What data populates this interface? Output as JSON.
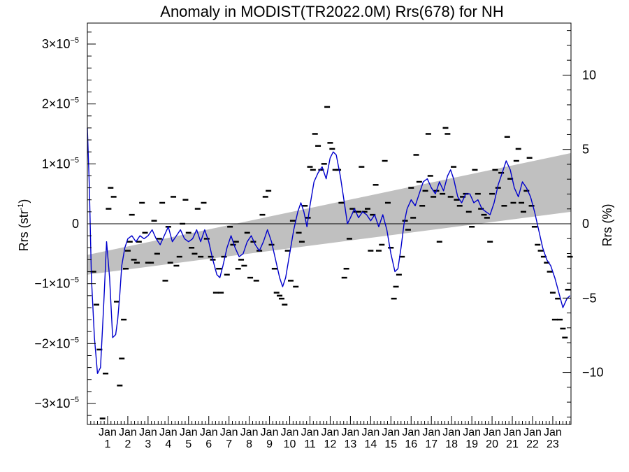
{
  "chart_data": {
    "type": "line",
    "title": "Anomaly in MODIST(TR2022.0M) Rrs(678) for NH",
    "ylabel": "Rrs (str",
    "ylabel_sup": "-1",
    "ylabel_close": ")",
    "y2label": "Rrs (%)",
    "ylim": [
      -3.35e-05,
      3.35e-05
    ],
    "y2lim": [
      -13.5,
      13.5
    ],
    "xlim": [
      0,
      23.9
    ],
    "grid": false,
    "left_ticks": [
      {
        "value": 3e-05,
        "mant": "3",
        "times": "×10",
        "exp": "−5"
      },
      {
        "value": 2e-05,
        "mant": "2",
        "times": "×10",
        "exp": "−5"
      },
      {
        "value": 1e-05,
        "mant": "1",
        "times": "×10",
        "exp": "−5"
      },
      {
        "value": 0,
        "mant": "0",
        "times": "",
        "exp": ""
      },
      {
        "value": -1e-05,
        "mant": "−1",
        "times": "×10",
        "exp": "−5"
      },
      {
        "value": -2e-05,
        "mant": "−2",
        "times": "×10",
        "exp": "−5"
      },
      {
        "value": -3e-05,
        "mant": "−3",
        "times": "×10",
        "exp": "−5"
      }
    ],
    "right_ticks": [
      {
        "value": 10,
        "label": "10"
      },
      {
        "value": 5,
        "label": "5"
      },
      {
        "value": 0,
        "label": "0"
      },
      {
        "value": -5,
        "label": "−5"
      },
      {
        "value": -10,
        "label": "−10"
      }
    ],
    "x_tick_labels": [
      {
        "month": "Jan",
        "year": "1"
      },
      {
        "month": "Jan",
        "year": "2"
      },
      {
        "month": "Jan",
        "year": "3"
      },
      {
        "month": "Jan",
        "year": "4"
      },
      {
        "month": "Jan",
        "year": "5"
      },
      {
        "month": "Jan",
        "year": "6"
      },
      {
        "month": "Jan",
        "year": "7"
      },
      {
        "month": "Jan",
        "year": "8"
      },
      {
        "month": "Jan",
        "year": "9"
      },
      {
        "month": "Jan",
        "year": "10"
      },
      {
        "month": "Jan",
        "year": "11"
      },
      {
        "month": "Jan",
        "year": "12"
      },
      {
        "month": "Jan",
        "year": "13"
      },
      {
        "month": "Jan",
        "year": "14"
      },
      {
        "month": "Jan",
        "year": "15"
      },
      {
        "month": "Jan",
        "year": "16"
      },
      {
        "month": "Jan",
        "year": "17"
      },
      {
        "month": "Jan",
        "year": "18"
      },
      {
        "month": "Jan",
        "year": "19"
      },
      {
        "month": "Jan",
        "year": "20"
      },
      {
        "month": "Jan",
        "year": "21"
      },
      {
        "month": "Jan",
        "year": "22"
      },
      {
        "month": "Jan",
        "year": "23"
      }
    ],
    "band": {
      "lower_start": -8.5e-06,
      "lower_end": 2e-06,
      "upper_start": -5.2e-06,
      "upper_end": 1.18e-05,
      "color": "#c0c0c0"
    },
    "smoothed_line": {
      "color": "#0000cc",
      "points": [
        [
          0.0,
          1.6e-05
        ],
        [
          0.1,
          6e-06
        ],
        [
          0.2,
          -9e-06
        ],
        [
          0.35,
          -1.9e-05
        ],
        [
          0.5,
          -2.5e-05
        ],
        [
          0.65,
          -2.4e-05
        ],
        [
          0.8,
          -1.4e-05
        ],
        [
          0.95,
          -3e-06
        ],
        [
          1.1,
          -9e-06
        ],
        [
          1.25,
          -1.9e-05
        ],
        [
          1.4,
          -1.85e-05
        ],
        [
          1.5,
          -1.6e-05
        ],
        [
          1.6,
          -1.2e-05
        ],
        [
          1.7,
          -7e-06
        ],
        [
          1.85,
          -4e-06
        ],
        [
          2.0,
          -2.5e-06
        ],
        [
          2.2,
          -2e-06
        ],
        [
          2.4,
          -3e-06
        ],
        [
          2.6,
          -2e-06
        ],
        [
          2.8,
          -2.5e-06
        ],
        [
          3.0,
          -2e-06
        ],
        [
          3.2,
          -1e-06
        ],
        [
          3.4,
          -2.5e-06
        ],
        [
          3.6,
          -3.5e-06
        ],
        [
          3.8,
          -2e-06
        ],
        [
          4.0,
          -5e-07
        ],
        [
          4.2,
          -3e-06
        ],
        [
          4.4,
          -2e-06
        ],
        [
          4.6,
          -1e-06
        ],
        [
          4.8,
          -2.5e-06
        ],
        [
          5.0,
          -3e-06
        ],
        [
          5.2,
          -2.5e-06
        ],
        [
          5.4,
          -1e-06
        ],
        [
          5.6,
          -3e-06
        ],
        [
          5.8,
          -1e-06
        ],
        [
          6.0,
          -3e-06
        ],
        [
          6.2,
          -6e-06
        ],
        [
          6.4,
          -8.5e-06
        ],
        [
          6.55,
          -9e-06
        ],
        [
          6.7,
          -7e-06
        ],
        [
          6.9,
          -4e-06
        ],
        [
          7.1,
          -2e-06
        ],
        [
          7.3,
          -4e-06
        ],
        [
          7.5,
          -5.5e-06
        ],
        [
          7.7,
          -5e-06
        ],
        [
          7.9,
          -3e-06
        ],
        [
          8.1,
          -2e-06
        ],
        [
          8.3,
          -3.5e-06
        ],
        [
          8.5,
          -4.5e-06
        ],
        [
          8.7,
          -3e-06
        ],
        [
          8.9,
          -1e-06
        ],
        [
          9.1,
          -3e-06
        ],
        [
          9.3,
          -6e-06
        ],
        [
          9.5,
          -9e-06
        ],
        [
          9.65,
          -1.05e-05
        ],
        [
          9.8,
          -9e-06
        ],
        [
          10.0,
          -5e-06
        ],
        [
          10.2,
          -1e-06
        ],
        [
          10.4,
          2e-06
        ],
        [
          10.55,
          3.5e-06
        ],
        [
          10.7,
          2e-06
        ],
        [
          10.85,
          -5e-07
        ],
        [
          11.0,
          3e-06
        ],
        [
          11.2,
          7e-06
        ],
        [
          11.4,
          8.5e-06
        ],
        [
          11.6,
          9.5e-06
        ],
        [
          11.8,
          7.5e-06
        ],
        [
          12.0,
          1.1e-05
        ],
        [
          12.15,
          1.2e-05
        ],
        [
          12.3,
          1.15e-05
        ],
        [
          12.5,
          8e-06
        ],
        [
          12.7,
          3.5e-06
        ],
        [
          12.85,
          0.0
        ],
        [
          13.0,
          1e-06
        ],
        [
          13.2,
          2.5e-06
        ],
        [
          13.4,
          1e-06
        ],
        [
          13.6,
          2e-06
        ],
        [
          13.8,
          1.5e-06
        ],
        [
          14.0,
          5e-07
        ],
        [
          14.2,
          1.5e-06
        ],
        [
          14.4,
          -5e-07
        ],
        [
          14.6,
          1.5e-06
        ],
        [
          14.8,
          -1e-06
        ],
        [
          15.0,
          -5e-06
        ],
        [
          15.2,
          -8e-06
        ],
        [
          15.35,
          -7.5e-06
        ],
        [
          15.5,
          -4e-06
        ],
        [
          15.65,
          0.0
        ],
        [
          15.8,
          2.5e-06
        ],
        [
          16.0,
          4e-06
        ],
        [
          16.2,
          3e-06
        ],
        [
          16.4,
          5e-06
        ],
        [
          16.6,
          7e-06
        ],
        [
          16.8,
          7.5e-06
        ],
        [
          17.0,
          6e-06
        ],
        [
          17.2,
          5e-06
        ],
        [
          17.4,
          7e-06
        ],
        [
          17.6,
          5.5e-06
        ],
        [
          17.8,
          8e-06
        ],
        [
          17.95,
          9e-06
        ],
        [
          18.1,
          7.5e-06
        ],
        [
          18.3,
          4.5e-06
        ],
        [
          18.5,
          3.5e-06
        ],
        [
          18.7,
          5e-06
        ],
        [
          18.9,
          5e-06
        ],
        [
          19.1,
          3.5e-06
        ],
        [
          19.3,
          4e-06
        ],
        [
          19.5,
          2.5e-06
        ],
        [
          19.7,
          2e-06
        ],
        [
          19.9,
          1.5e-06
        ],
        [
          20.1,
          3.5e-06
        ],
        [
          20.3,
          6.5e-06
        ],
        [
          20.5,
          8.5e-06
        ],
        [
          20.7,
          1.05e-05
        ],
        [
          20.9,
          9e-06
        ],
        [
          21.1,
          6e-06
        ],
        [
          21.3,
          4.5e-06
        ],
        [
          21.5,
          7e-06
        ],
        [
          21.7,
          6e-06
        ],
        [
          21.9,
          4.5e-06
        ],
        [
          22.1,
          2e-06
        ],
        [
          22.3,
          -1e-06
        ],
        [
          22.5,
          -4e-06
        ],
        [
          22.7,
          -6e-06
        ],
        [
          22.9,
          -7e-06
        ],
        [
          23.1,
          -9e-06
        ],
        [
          23.3,
          -1.15e-05
        ],
        [
          23.5,
          -1.4e-05
        ],
        [
          23.7,
          -1.25e-05
        ],
        [
          23.85,
          -1.2e-05
        ]
      ]
    },
    "monthly_points": [
      [
        0.3,
        -8e-06
      ],
      [
        0.45,
        -1.35e-05
      ],
      [
        0.6,
        -2.1e-05
      ],
      [
        0.75,
        -3.25e-05
      ],
      [
        0.9,
        -2.5e-05
      ],
      [
        1.05,
        2.5e-06
      ],
      [
        1.15,
        6e-06
      ],
      [
        1.3,
        4.5e-06
      ],
      [
        1.45,
        -1.3e-05
      ],
      [
        1.6,
        -2.7e-05
      ],
      [
        1.7,
        -2.25e-05
      ],
      [
        1.8,
        -1.6e-05
      ],
      [
        1.9,
        -7.5e-06
      ],
      [
        2.0,
        -4.5e-06
      ],
      [
        2.1,
        -3e-06
      ],
      [
        2.2,
        1.5e-06
      ],
      [
        2.3,
        -6e-06
      ],
      [
        2.45,
        -6.5e-06
      ],
      [
        2.55,
        -3e-06
      ],
      [
        2.7,
        3.5e-06
      ],
      [
        2.85,
        -1.5e-06
      ],
      [
        3.0,
        -6.5e-06
      ],
      [
        3.15,
        -6.5e-06
      ],
      [
        3.3,
        5e-07
      ],
      [
        3.45,
        -5e-06
      ],
      [
        3.55,
        -2.5e-06
      ],
      [
        3.7,
        3.5e-06
      ],
      [
        3.85,
        -9.5e-06
      ],
      [
        4.0,
        -5e-07
      ],
      [
        4.1,
        -6.5e-06
      ],
      [
        4.25,
        4.5e-06
      ],
      [
        4.4,
        -7e-06
      ],
      [
        4.55,
        -5.5e-06
      ],
      [
        4.7,
        0.0
      ],
      [
        4.85,
        4e-06
      ],
      [
        5.0,
        -1.5e-06
      ],
      [
        5.15,
        -4e-06
      ],
      [
        5.3,
        -5e-06
      ],
      [
        5.45,
        2.5e-06
      ],
      [
        5.6,
        -5.5e-06
      ],
      [
        5.75,
        3.5e-06
      ],
      [
        5.9,
        -2.5e-06
      ],
      [
        6.1,
        -5.5e-06
      ],
      [
        6.2,
        -6e-06
      ],
      [
        6.35,
        -1.15e-05
      ],
      [
        6.5,
        -7.5e-06
      ],
      [
        6.6,
        -1.15e-05
      ],
      [
        6.75,
        -5.5e-06
      ],
      [
        6.9,
        -8.5e-06
      ],
      [
        7.05,
        -5e-07
      ],
      [
        7.2,
        -3.5e-06
      ],
      [
        7.35,
        -3e-06
      ],
      [
        7.45,
        -7.5e-06
      ],
      [
        7.6,
        -6e-06
      ],
      [
        7.75,
        -7e-06
      ],
      [
        7.9,
        -1.5e-06
      ],
      [
        8.05,
        -9e-06
      ],
      [
        8.2,
        -3e-06
      ],
      [
        8.35,
        -9.5e-06
      ],
      [
        8.5,
        -4.5e-06
      ],
      [
        8.65,
        1.5e-06
      ],
      [
        8.8,
        4.5e-06
      ],
      [
        8.95,
        5.5e-06
      ],
      [
        9.1,
        -3.5e-06
      ],
      [
        9.25,
        -7.5e-06
      ],
      [
        9.35,
        -1.15e-05
      ],
      [
        9.5,
        -1.2e-05
      ],
      [
        9.6,
        -1.25e-05
      ],
      [
        9.75,
        -1.35e-05
      ],
      [
        9.9,
        -4.5e-06
      ],
      [
        10.05,
        -9.5e-06
      ],
      [
        10.15,
        5e-07
      ],
      [
        10.3,
        -1.05e-05
      ],
      [
        10.45,
        -1.5e-06
      ],
      [
        10.6,
        -3e-06
      ],
      [
        10.75,
        3e-06
      ],
      [
        10.9,
        1e-06
      ],
      [
        11.0,
        9.5e-06
      ],
      [
        11.15,
        9e-06
      ],
      [
        11.25,
        1.5e-05
      ],
      [
        11.4,
        1.3e-05
      ],
      [
        11.55,
        9e-06
      ],
      [
        11.7,
        1e-05
      ],
      [
        11.85,
        1.95e-05
      ],
      [
        12.0,
        1.35e-05
      ],
      [
        12.1,
        1.25e-05
      ],
      [
        12.25,
        9e-06
      ],
      [
        12.4,
        9e-06
      ],
      [
        12.55,
        3.5e-06
      ],
      [
        12.7,
        -9e-06
      ],
      [
        12.8,
        -7.5e-06
      ],
      [
        12.95,
        -2.5e-06
      ],
      [
        13.1,
        2.5e-06
      ],
      [
        13.25,
        2e-06
      ],
      [
        13.4,
        2e-06
      ],
      [
        13.55,
        9.5e-06
      ],
      [
        13.7,
        2e-06
      ],
      [
        13.85,
        2.5e-06
      ],
      [
        14.0,
        -4.5e-06
      ],
      [
        14.1,
        1.5e-06
      ],
      [
        14.25,
        6.5e-06
      ],
      [
        14.4,
        -4.5e-06
      ],
      [
        14.55,
        -3.5e-06
      ],
      [
        14.7,
        1.05e-05
      ],
      [
        14.85,
        3.5e-06
      ],
      [
        15.0,
        -4e-06
      ],
      [
        15.15,
        -1.25e-05
      ],
      [
        15.25,
        -1.05e-05
      ],
      [
        15.4,
        -8.5e-06
      ],
      [
        15.55,
        -5.5e-06
      ],
      [
        15.7,
        5e-07
      ],
      [
        15.85,
        -1e-06
      ],
      [
        16.0,
        6e-06
      ],
      [
        16.1,
        1e-06
      ],
      [
        16.25,
        1.15e-05
      ],
      [
        16.4,
        7e-06
      ],
      [
        16.55,
        3e-06
      ],
      [
        16.7,
        5.5e-06
      ],
      [
        16.85,
        1.5e-05
      ],
      [
        16.95,
        8e-06
      ],
      [
        17.1,
        4.5e-06
      ],
      [
        17.25,
        5.5e-06
      ],
      [
        17.4,
        -3e-06
      ],
      [
        17.55,
        5e-06
      ],
      [
        17.7,
        1.6e-05
      ],
      [
        17.8,
        1.5e-05
      ],
      [
        17.95,
        4.5e-06
      ],
      [
        18.1,
        9.5e-06
      ],
      [
        18.25,
        4e-06
      ],
      [
        18.4,
        3e-06
      ],
      [
        18.55,
        4.5e-06
      ],
      [
        18.7,
        5e-06
      ],
      [
        18.85,
        2e-06
      ],
      [
        19.0,
        -5e-07
      ],
      [
        19.15,
        9e-06
      ],
      [
        19.3,
        5e-06
      ],
      [
        19.45,
        2.5e-06
      ],
      [
        19.6,
        1.5e-06
      ],
      [
        19.75,
        1e-06
      ],
      [
        19.9,
        -3e-06
      ],
      [
        20.0,
        5e-06
      ],
      [
        20.15,
        9e-06
      ],
      [
        20.3,
        6e-06
      ],
      [
        20.45,
        8.5e-06
      ],
      [
        20.6,
        3e-06
      ],
      [
        20.75,
        1.45e-05
      ],
      [
        20.9,
        7.5e-06
      ],
      [
        21.05,
        3.5e-06
      ],
      [
        21.2,
        1.05e-05
      ],
      [
        21.3,
        1.25e-05
      ],
      [
        21.45,
        3.5e-06
      ],
      [
        21.55,
        2e-06
      ],
      [
        21.7,
        5.5e-06
      ],
      [
        21.85,
        1.1e-05
      ],
      [
        21.95,
        3e-06
      ],
      [
        22.1,
        -5e-07
      ],
      [
        22.25,
        -3.5e-06
      ],
      [
        22.4,
        -4.5e-06
      ],
      [
        22.55,
        -5.5e-06
      ],
      [
        22.7,
        -6.5e-06
      ],
      [
        22.85,
        -8e-06
      ],
      [
        23.0,
        -1.15e-05
      ],
      [
        23.1,
        -1.6e-05
      ],
      [
        23.25,
        -1.25e-05
      ],
      [
        23.35,
        -1.6e-05
      ],
      [
        23.5,
        -1.75e-05
      ],
      [
        23.6,
        -1.9e-05
      ],
      [
        23.75,
        -1.1e-05
      ],
      [
        23.85,
        -5.5e-06
      ]
    ]
  }
}
